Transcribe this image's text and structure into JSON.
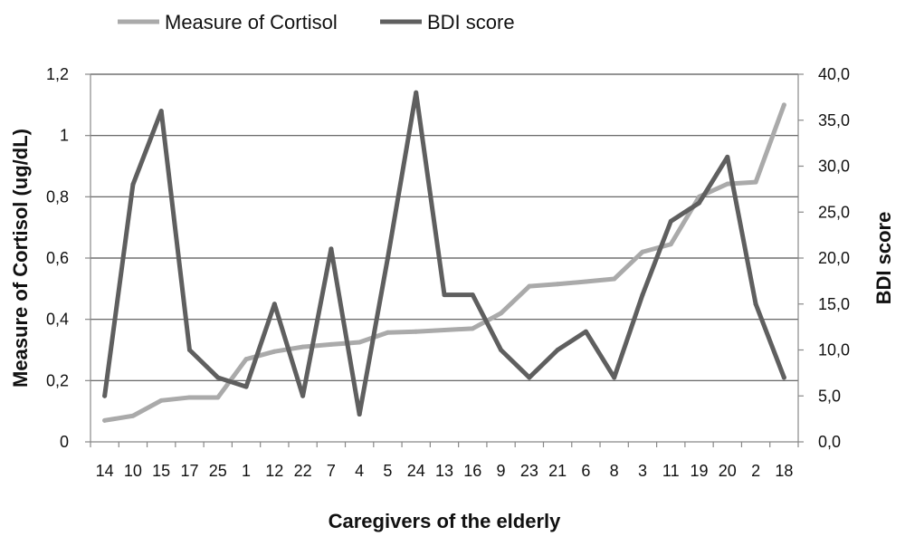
{
  "chart_data": {
    "type": "line",
    "title": "",
    "xlabel": "Caregivers of the elderly",
    "ylabel_left": "Measure of Cortisol (ug/dL)",
    "ylabel_right": "BDI score",
    "categories": [
      "14",
      "10",
      "15",
      "17",
      "25",
      "1",
      "12",
      "22",
      "7",
      "4",
      "5",
      "24",
      "13",
      "16",
      "9",
      "23",
      "21",
      "6",
      "8",
      "3",
      "11",
      "19",
      "20",
      "2",
      "18"
    ],
    "y_left": {
      "min": 0,
      "max": 1.2,
      "ticks": [
        0,
        0.2,
        0.4,
        0.6,
        0.8,
        1,
        1.2
      ],
      "tick_labels": [
        "0",
        "0,2",
        "0,4",
        "0,6",
        "0,8",
        "1",
        "1,2"
      ]
    },
    "y_right": {
      "min": 0,
      "max": 40,
      "ticks": [
        0,
        5,
        10,
        15,
        20,
        25,
        30,
        35,
        40
      ],
      "tick_labels": [
        "0,0",
        "5,0",
        "10,0",
        "15,0",
        "20,0",
        "25,0",
        "30,0",
        "35,0",
        "40,0"
      ]
    },
    "grid": "horizontal",
    "legend_position": "top",
    "series": [
      {
        "name": "Measure of Cortisol",
        "axis": "left",
        "color": "#aaaaaa",
        "values": [
          0.07,
          0.085,
          0.135,
          0.145,
          0.145,
          0.27,
          0.295,
          0.31,
          0.318,
          0.325,
          0.357,
          0.36,
          0.365,
          0.37,
          0.42,
          0.508,
          0.515,
          0.523,
          0.532,
          0.62,
          0.645,
          0.8,
          0.842,
          0.848,
          1.1
        ]
      },
      {
        "name": "BDI score",
        "axis": "right",
        "color": "#5f5f5f",
        "values": [
          5,
          28,
          36,
          10,
          7,
          6,
          15,
          5,
          21,
          3,
          20,
          38,
          16,
          16,
          10,
          7,
          10,
          12,
          7,
          16,
          24,
          26,
          31,
          15,
          7
        ]
      }
    ]
  }
}
